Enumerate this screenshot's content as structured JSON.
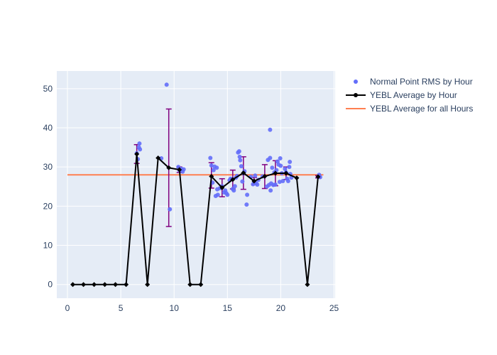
{
  "chart_data": {
    "type": "scatter",
    "title": "",
    "xlabel": "",
    "ylabel": "",
    "xlim": [
      -1,
      25.1
    ],
    "ylim": [
      -3.5,
      54.5
    ],
    "xticks": [
      0,
      5,
      10,
      15,
      20,
      25
    ],
    "yticks": [
      0,
      10,
      20,
      30,
      40,
      50
    ],
    "grid": true,
    "legend_position": "top-right",
    "colors": {
      "plot_bg": "#e5ecf6",
      "grid": "#ffffff",
      "scatter": "#636efa",
      "avg_line": "#000000",
      "overall_line": "#ff7f50",
      "error_bar": "#800080"
    },
    "legend": [
      {
        "label": "Normal Point RMS by Hour",
        "kind": "marker"
      },
      {
        "label": "YEBL Average by Hour",
        "kind": "line-marker"
      },
      {
        "label": "YEBL Average for all Hours",
        "kind": "line"
      }
    ],
    "series": [
      {
        "name": "Normal Point RMS by Hour",
        "mode": "markers",
        "points": [
          [
            6.5,
            33.5
          ],
          [
            6.6,
            32.0
          ],
          [
            6.7,
            35.0
          ],
          [
            6.8,
            34.5
          ],
          [
            6.75,
            36.0
          ],
          [
            8.8,
            32.2
          ],
          [
            9.3,
            51.0
          ],
          [
            9.6,
            19.2
          ],
          [
            10.4,
            30.0
          ],
          [
            10.5,
            29.2
          ],
          [
            10.7,
            29.5
          ],
          [
            10.8,
            28.8
          ],
          [
            10.9,
            29.4
          ],
          [
            13.4,
            32.3
          ],
          [
            13.5,
            30.4
          ],
          [
            13.6,
            26.0
          ],
          [
            13.7,
            29.2
          ],
          [
            13.8,
            30.1
          ],
          [
            13.9,
            22.6
          ],
          [
            14.0,
            29.8
          ],
          [
            14.05,
            24.3
          ],
          [
            14.1,
            22.9
          ],
          [
            14.3,
            24.6
          ],
          [
            14.5,
            25.1
          ],
          [
            14.7,
            23.5
          ],
          [
            14.8,
            24.0
          ],
          [
            14.9,
            23.3
          ],
          [
            15.0,
            22.9
          ],
          [
            15.2,
            26.6
          ],
          [
            15.3,
            27.0
          ],
          [
            15.4,
            26.9
          ],
          [
            15.5,
            24.4
          ],
          [
            15.6,
            24.0
          ],
          [
            15.7,
            25.1
          ],
          [
            15.8,
            27.3
          ],
          [
            15.9,
            27.7
          ],
          [
            16.0,
            33.7
          ],
          [
            16.1,
            34.0
          ],
          [
            16.15,
            32.6
          ],
          [
            16.2,
            31.7
          ],
          [
            16.3,
            30.2
          ],
          [
            16.4,
            26.3
          ],
          [
            16.5,
            28.3
          ],
          [
            16.6,
            28.9
          ],
          [
            16.8,
            20.4
          ],
          [
            16.85,
            22.9
          ],
          [
            17.2,
            27.5
          ],
          [
            17.4,
            25.6
          ],
          [
            17.5,
            26.0
          ],
          [
            17.6,
            27.8
          ],
          [
            17.7,
            25.8
          ],
          [
            17.8,
            25.5
          ],
          [
            17.9,
            26.7
          ],
          [
            18.3,
            27.6
          ],
          [
            18.7,
            25.0
          ],
          [
            18.8,
            31.8
          ],
          [
            18.9,
            25.4
          ],
          [
            19.0,
            32.3
          ],
          [
            19.0,
            39.5
          ],
          [
            19.05,
            24.0
          ],
          [
            19.1,
            25.8
          ],
          [
            19.2,
            29.8
          ],
          [
            19.3,
            25.4
          ],
          [
            19.4,
            28.6
          ],
          [
            19.5,
            25.5
          ],
          [
            19.6,
            29.2
          ],
          [
            19.7,
            31.4
          ],
          [
            19.8,
            30.6
          ],
          [
            19.9,
            26.2
          ],
          [
            19.95,
            32.2
          ],
          [
            20.0,
            30.3
          ],
          [
            20.1,
            28.4
          ],
          [
            20.2,
            26.4
          ],
          [
            20.4,
            29.5
          ],
          [
            20.5,
            28.6
          ],
          [
            20.6,
            27.0
          ],
          [
            20.7,
            26.4
          ],
          [
            20.8,
            30.0
          ],
          [
            20.85,
            31.3
          ],
          [
            20.9,
            28.2
          ],
          [
            21.0,
            27.3
          ],
          [
            23.6,
            28.0
          ],
          [
            23.7,
            27.4
          ]
        ]
      },
      {
        "name": "YEBL Average by Hour",
        "mode": "lines+markers",
        "points": [
          [
            0.5,
            0
          ],
          [
            1.5,
            0
          ],
          [
            2.5,
            0
          ],
          [
            3.5,
            0
          ],
          [
            4.5,
            0
          ],
          [
            5.5,
            0
          ],
          [
            6.5,
            33.3
          ],
          [
            7.5,
            0
          ],
          [
            8.5,
            32.3
          ],
          [
            9.5,
            29.8
          ],
          [
            10.5,
            29.3
          ],
          [
            11.5,
            0
          ],
          [
            12.5,
            0
          ],
          [
            13.5,
            27.6
          ],
          [
            14.5,
            24.7
          ],
          [
            15.5,
            26.8
          ],
          [
            16.5,
            28.5
          ],
          [
            17.5,
            26.4
          ],
          [
            18.5,
            27.6
          ],
          [
            19.5,
            28.4
          ],
          [
            20.5,
            28.4
          ],
          [
            21.5,
            27.2
          ],
          [
            22.5,
            0
          ],
          [
            23.5,
            27.5
          ]
        ],
        "error_bars": [
          {
            "x": 6.5,
            "low": 30.9,
            "high": 35.7
          },
          {
            "x": 9.5,
            "low": 14.8,
            "high": 44.8
          },
          {
            "x": 10.5,
            "low": 28.6,
            "high": 30.0
          },
          {
            "x": 13.5,
            "low": 24.6,
            "high": 31.1
          },
          {
            "x": 14.5,
            "low": 22.4,
            "high": 27.0
          },
          {
            "x": 15.5,
            "low": 24.4,
            "high": 29.2
          },
          {
            "x": 16.5,
            "low": 24.3,
            "high": 32.6
          },
          {
            "x": 17.5,
            "low": 25.5,
            "high": 27.3
          },
          {
            "x": 18.5,
            "low": 24.5,
            "high": 30.6
          },
          {
            "x": 19.5,
            "low": 25.2,
            "high": 31.6
          },
          {
            "x": 20.5,
            "low": 26.8,
            "high": 30.0
          },
          {
            "x": 23.5,
            "low": 27.2,
            "high": 27.8
          }
        ]
      },
      {
        "name": "YEBL Average for all Hours",
        "mode": "lines",
        "points": [
          [
            0,
            28.0
          ],
          [
            24,
            28.0
          ]
        ]
      }
    ]
  }
}
